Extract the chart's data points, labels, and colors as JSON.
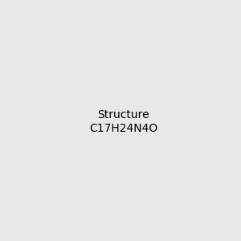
{
  "bg_color": "#e8e8e8",
  "bond_color": "#2a2a2a",
  "N_color": "#0000cc",
  "NH_color": "#5a9a9a",
  "O_color": "#dd0000",
  "C_color": "#2a2a2a",
  "figsize": [
    3.0,
    3.0
  ],
  "dpi": 100
}
